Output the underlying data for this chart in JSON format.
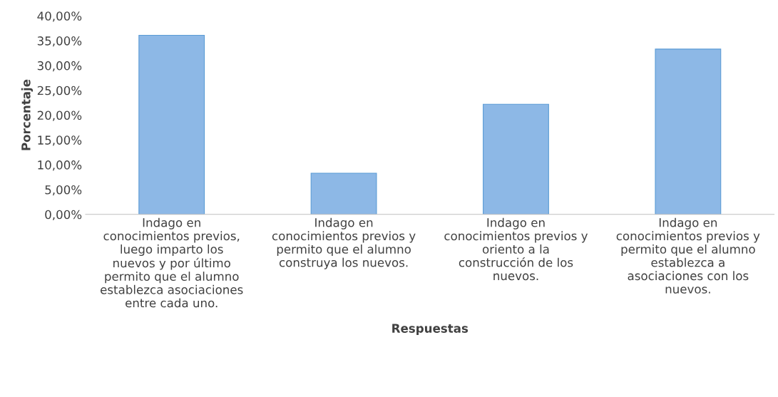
{
  "chart_data": {
    "type": "bar",
    "xlabel": "Respuestas",
    "ylabel": "Porcentaje",
    "categories": [
      "Indago en\nconocimientos previos,\nluego imparto los\nnuevos y por último\npermito que el alumno\nestablezca asociaciones\nentre cada uno.",
      "Indago en\nconocimientos previos y\npermito que el alumno\nconstruya los nuevos.",
      "Indago en\nconocimientos previos y\noriento a la\nconstrucción de los\nnuevos.",
      "Indago en\nconocimientos previos y\npermito que el alumno\nestablezca a\nasociaciones con los\nnuevos."
    ],
    "values": [
      36.1,
      8.3,
      22.2,
      33.3
    ],
    "color": "#8db8e6",
    "ylim": [
      0,
      40
    ],
    "yticks": [
      {
        "value": 0,
        "label": "0,00%"
      },
      {
        "value": 5,
        "label": "5,00%"
      },
      {
        "value": 10,
        "label": "10,00%"
      },
      {
        "value": 15,
        "label": "15,00%"
      },
      {
        "value": 20,
        "label": "20,00%"
      },
      {
        "value": 25,
        "label": "25,00%"
      },
      {
        "value": 30,
        "label": "30,00%"
      },
      {
        "value": 35,
        "label": "35,00%"
      },
      {
        "value": 40,
        "label": "40,00%"
      }
    ],
    "grid": false,
    "legend": false
  }
}
